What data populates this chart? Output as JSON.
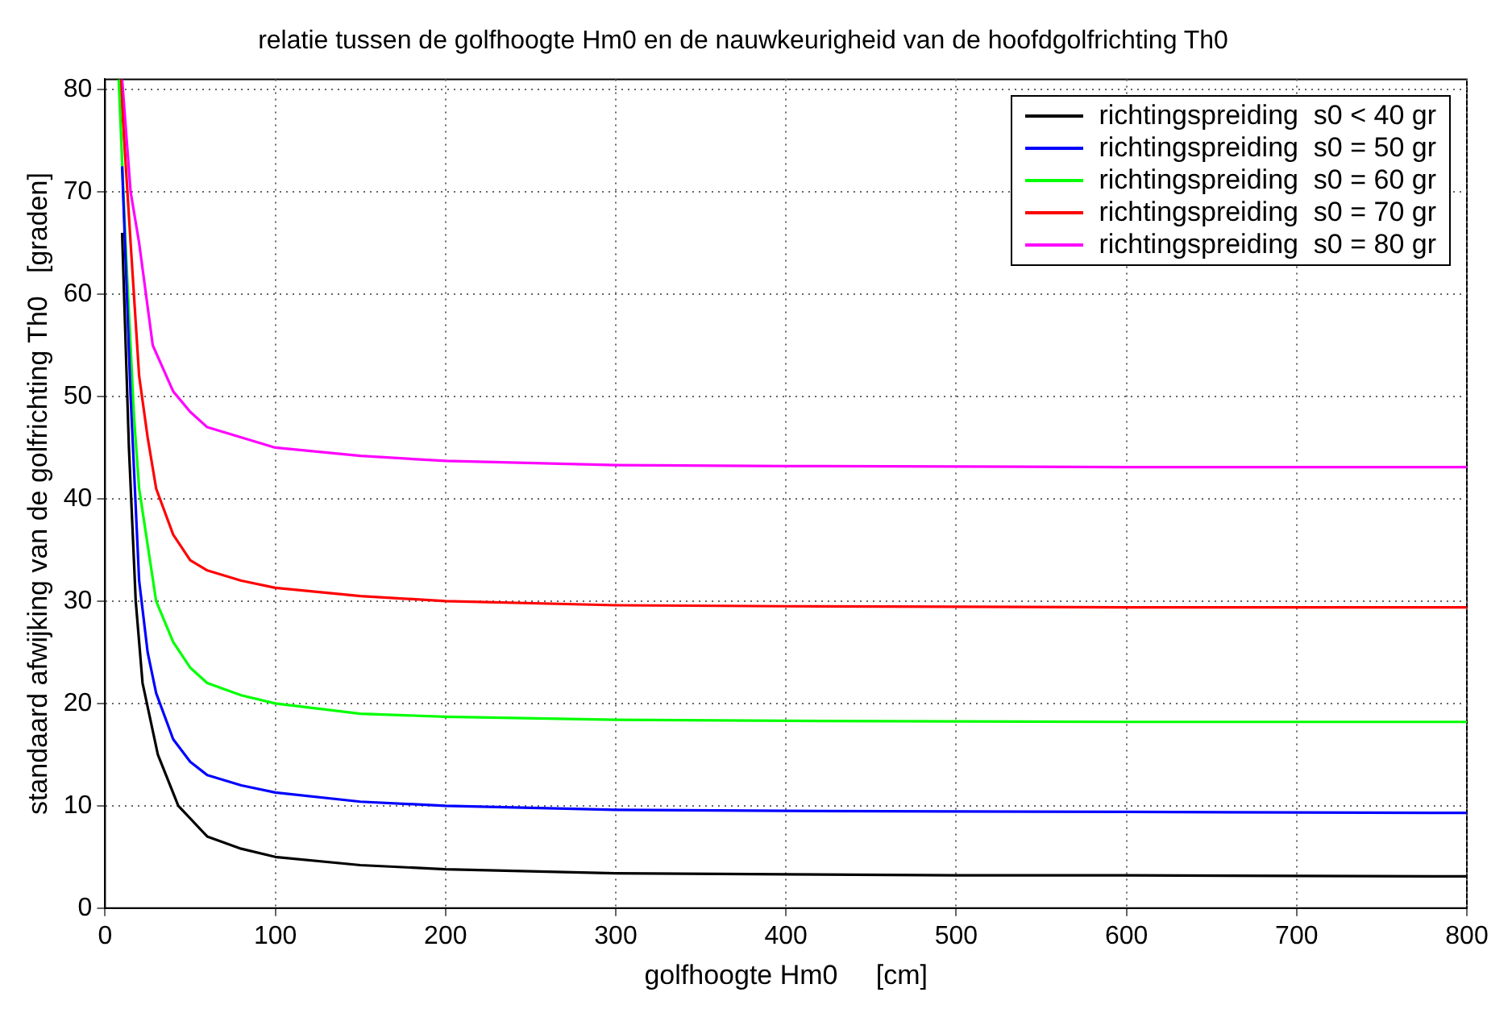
{
  "chart_data": {
    "type": "line",
    "title": "relatie tussen de golfhoogte Hm0 en de nauwkeurigheid van de hoofdgolfrichting Th0",
    "xlabel": "golfhoogte Hm0     [cm]",
    "ylabel": "standaard afwijking van de golfrichting Th0   [graden]",
    "xlim": [
      0,
      800
    ],
    "xticks": [
      0,
      100,
      200,
      300,
      400,
      500,
      600,
      700,
      800
    ],
    "ylim": [
      0,
      81
    ],
    "yticks": [
      0,
      10,
      20,
      30,
      40,
      50,
      60,
      70,
      80
    ],
    "grid": true,
    "legend": "top right",
    "marker": "none",
    "line_style": "solid",
    "series": [
      {
        "name": "richtingspreiding  s0 < 40 gr",
        "color": "#000000",
        "x": [
          10,
          14,
          18,
          22,
          31,
          43,
          60,
          80,
          100,
          150,
          200,
          300,
          400,
          500,
          600,
          800
        ],
        "values": [
          66,
          45,
          30,
          22,
          15,
          10,
          7,
          5.8,
          5,
          4.2,
          3.8,
          3.4,
          3.3,
          3.2,
          3.2,
          3.1
        ]
      },
      {
        "name": "richtingspreiding  s0 = 50 gr",
        "color": "#0000ff",
        "x": [
          10,
          15,
          20,
          25,
          30,
          40,
          50,
          60,
          80,
          100,
          150,
          200,
          300,
          400,
          600,
          800
        ],
        "values": [
          72.5,
          50,
          32,
          25,
          21,
          16.5,
          14.3,
          13,
          12,
          11.3,
          10.4,
          10,
          9.6,
          9.5,
          9.4,
          9.3
        ]
      },
      {
        "name": "richtingspreiding  s0 = 60 gr",
        "color": "#00ff00",
        "x": [
          8,
          12,
          17,
          20,
          30,
          40,
          50,
          60,
          80,
          100,
          150,
          200,
          300,
          400,
          600,
          800
        ],
        "values": [
          81,
          65,
          48,
          41,
          30,
          26,
          23.5,
          22,
          20.8,
          20,
          19,
          18.7,
          18.4,
          18.3,
          18.2,
          18.2
        ]
      },
      {
        "name": "richtingspreiding  s0 = 70 gr",
        "color": "#ff0000",
        "x": [
          9,
          15,
          20,
          25,
          30,
          40,
          50,
          60,
          80,
          100,
          150,
          200,
          300,
          400,
          600,
          800
        ],
        "values": [
          81,
          65,
          52,
          46,
          41,
          36.5,
          34,
          33,
          32,
          31.3,
          30.5,
          30,
          29.6,
          29.5,
          29.4,
          29.4
        ]
      },
      {
        "name": "richtingspreiding  s0 = 80 gr",
        "color": "#ff00ff",
        "x": [
          10,
          15,
          20,
          28,
          40,
          50,
          60,
          80,
          100,
          150,
          200,
          300,
          400,
          600,
          800
        ],
        "values": [
          81,
          70,
          65,
          55,
          50.5,
          48.5,
          47,
          46,
          45,
          44.2,
          43.7,
          43.3,
          43.2,
          43.1,
          43.1
        ]
      }
    ]
  }
}
